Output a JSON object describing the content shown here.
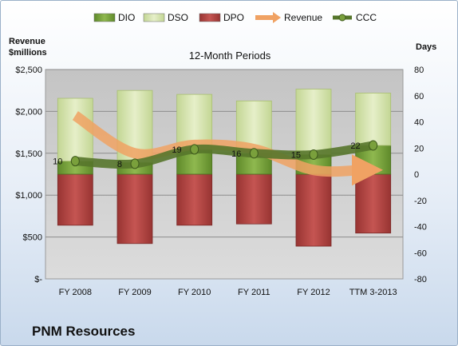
{
  "company": "PNM Resources",
  "chart_data": {
    "type": "bar",
    "title": "12-Month Periods",
    "left_axis_title": [
      "Revenue",
      "$millions"
    ],
    "right_axis_title": "Days",
    "categories": [
      "FY 2008",
      "FY 2009",
      "FY 2010",
      "FY 2011",
      "FY 2012",
      "TTM 3-2013"
    ],
    "left_ticks": [
      "$-",
      "$500",
      "$1,000",
      "$1,500",
      "$2,000",
      "$2,500"
    ],
    "left_ylim": [
      0,
      2500
    ],
    "right_ticks": [
      "-80",
      "-60",
      "-40",
      "-20",
      "0",
      "20",
      "40",
      "60",
      "80"
    ],
    "right_ylim": [
      -80,
      80
    ],
    "grid": true,
    "legend_position": "top",
    "series": [
      {
        "name": "DIO",
        "kind": "stacked-bar",
        "axis": "right",
        "color": "#77a03a",
        "values": [
          10,
          9,
          19,
          16,
          15,
          22
        ]
      },
      {
        "name": "DSO",
        "kind": "stacked-bar",
        "axis": "right",
        "color": "#d7e4b0",
        "values": [
          48,
          55,
          42,
          40,
          50,
          40
        ]
      },
      {
        "name": "DPO",
        "kind": "negative-bar",
        "axis": "right",
        "color": "#b3403d",
        "values": [
          -39,
          -53,
          -39,
          -38,
          -55,
          -45
        ]
      },
      {
        "name": "Revenue",
        "kind": "arrow-line",
        "axis": "left",
        "color": "#f0a263",
        "values": [
          1950,
          1500,
          1600,
          1550,
          1300,
          1300
        ]
      },
      {
        "name": "CCC",
        "kind": "line",
        "axis": "right",
        "color": "#56762b",
        "values": [
          10,
          8,
          19,
          16,
          15,
          22
        ]
      }
    ],
    "data_labels": [
      "10",
      "8",
      "19",
      "16",
      "15",
      "22"
    ]
  }
}
